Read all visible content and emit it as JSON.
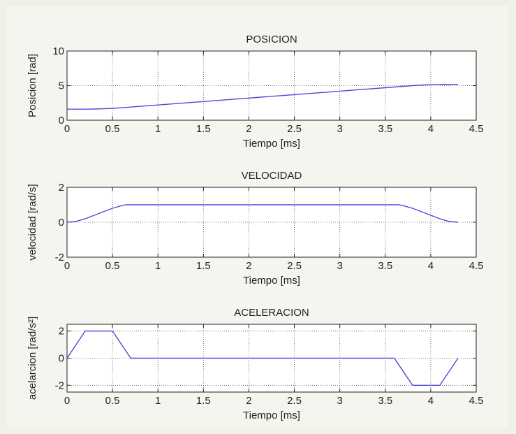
{
  "chart_data": [
    {
      "type": "line",
      "title": "POSICION",
      "xlabel": "Tiempo [ms]",
      "ylabel": "Posicion [rad]",
      "xlim": [
        0,
        4.5
      ],
      "ylim": [
        0,
        10
      ],
      "xticks": [
        "0",
        "0.5",
        "1",
        "1.5",
        "2",
        "2.5",
        "3",
        "3.5",
        "4",
        "4.5"
      ],
      "yticks": [
        "0",
        "5",
        "10"
      ],
      "ytick_values": [
        0,
        5,
        10
      ],
      "grid": true,
      "color": "#4b4bd8",
      "series": [
        {
          "x": [
            0,
            0.1,
            0.2,
            0.3,
            0.4,
            0.5,
            0.6,
            0.7,
            1.0,
            1.5,
            2.0,
            2.5,
            3.0,
            3.5,
            3.7,
            3.8,
            3.9,
            4.0,
            4.1,
            4.2,
            4.3
          ],
          "y": [
            1.6,
            1.6,
            1.6,
            1.62,
            1.66,
            1.72,
            1.8,
            1.9,
            2.2,
            2.7,
            3.2,
            3.7,
            4.2,
            4.7,
            4.9,
            5.0,
            5.08,
            5.14,
            5.17,
            5.18,
            5.18
          ]
        }
      ]
    },
    {
      "type": "line",
      "title": "VELOCIDAD",
      "xlabel": "Tiempo [ms]",
      "ylabel": "velocidad [rad/s]",
      "xlim": [
        0,
        4.5
      ],
      "ylim": [
        -2,
        2
      ],
      "xticks": [
        "0",
        "0.5",
        "1",
        "1.5",
        "2",
        "2.5",
        "3",
        "3.5",
        "4",
        "4.5"
      ],
      "yticks": [
        "-2",
        "0",
        "2"
      ],
      "ytick_values": [
        -2,
        0,
        2
      ],
      "grid": true,
      "color": "#4b4bd8",
      "series": [
        {
          "x": [
            0,
            0.1,
            0.2,
            0.3,
            0.4,
            0.5,
            0.6,
            0.65,
            3.65,
            3.7,
            3.8,
            3.9,
            4.0,
            4.1,
            4.2,
            4.3
          ],
          "y": [
            0,
            0.05,
            0.2,
            0.4,
            0.6,
            0.8,
            0.95,
            1.0,
            1.0,
            0.95,
            0.8,
            0.6,
            0.4,
            0.2,
            0.05,
            0
          ]
        }
      ]
    },
    {
      "type": "line",
      "title": "ACELERACION",
      "xlabel": "Tiempo [ms]",
      "ylabel": "acelarcion [rad/s²]",
      "xlim": [
        0,
        4.5
      ],
      "ylim": [
        -2.5,
        2.5
      ],
      "xticks": [
        "0",
        "0.5",
        "1",
        "1.5",
        "2",
        "2.5",
        "3",
        "3.5",
        "4",
        "4.5"
      ],
      "yticks": [
        "-2",
        "0",
        "2"
      ],
      "ytick_values": [
        -2,
        0,
        2
      ],
      "grid": true,
      "color": "#4b4bd8",
      "series": [
        {
          "x": [
            0,
            0.2,
            0.5,
            0.7,
            3.6,
            3.8,
            4.1,
            4.3
          ],
          "y": [
            0,
            2,
            2,
            0,
            0,
            -2,
            -2,
            0
          ]
        }
      ]
    }
  ]
}
